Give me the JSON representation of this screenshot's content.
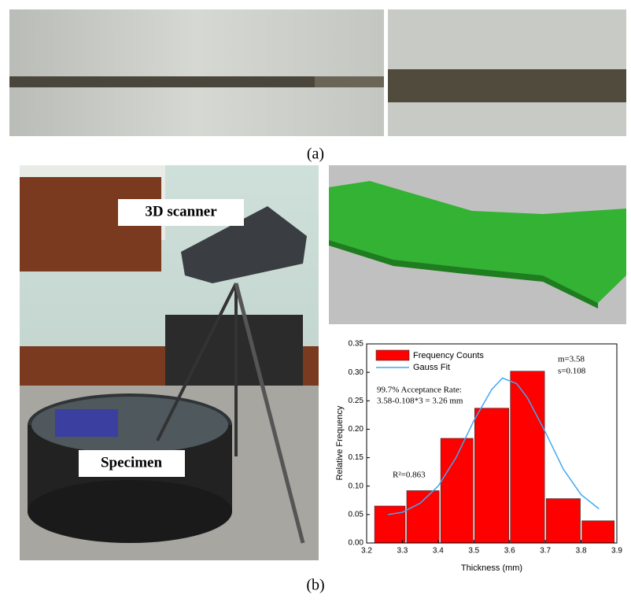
{
  "figure": {
    "panel_a_caption": "(a)",
    "panel_b_caption": "(b)",
    "scanner_label": "3D scanner",
    "specimen_label": "Specimen"
  },
  "chart_data": {
    "type": "histogram",
    "xlabel": "Thickness (mm)",
    "ylabel": "Relative Frequency",
    "bins": [
      3.22,
      3.31,
      3.405,
      3.5,
      3.6,
      3.7,
      3.8,
      3.895
    ],
    "series": [
      {
        "name": "Frequency Counts",
        "color": "#ff0000",
        "values": [
          0.065,
          0.092,
          0.184,
          0.237,
          0.302,
          0.078,
          0.039
        ]
      },
      {
        "name": "Gauss Fit",
        "type": "line",
        "color": "#3fa9f5",
        "x": [
          3.26,
          3.3,
          3.35,
          3.4,
          3.45,
          3.5,
          3.55,
          3.58,
          3.62,
          3.65,
          3.7,
          3.75,
          3.8,
          3.85
        ],
        "values": [
          0.05,
          0.054,
          0.07,
          0.1,
          0.15,
          0.215,
          0.27,
          0.29,
          0.28,
          0.255,
          0.195,
          0.13,
          0.085,
          0.06
        ]
      }
    ],
    "annotations": [
      "m=3.58",
      "s=0.108",
      "99.7% Acceptance Rate:",
      "3.58-0.108*3 = 3.26 mm",
      "R²=0.863"
    ],
    "xlim": [
      3.2,
      3.9
    ],
    "xticks": [
      3.2,
      3.3,
      3.4,
      3.5,
      3.6,
      3.7,
      3.8,
      3.9
    ],
    "ylim": [
      0,
      0.35
    ],
    "yticks": [
      {
        "value": 0,
        "label": "0.00"
      },
      {
        "value": 0.05,
        "label": "0.05"
      },
      {
        "value": 0.1,
        "label": "0.10"
      },
      {
        "value": 0.15,
        "label": "0.15"
      },
      {
        "value": 0.2,
        "label": "0.20"
      },
      {
        "value": 0.25,
        "label": "0.25"
      },
      {
        "value": 0.3,
        "label": "0.30"
      },
      {
        "value": 0.35,
        "label": "0.35"
      }
    ]
  }
}
